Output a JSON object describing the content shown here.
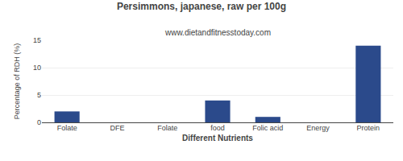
{
  "chart_data": {
    "type": "bar",
    "title": "Persimmons, japanese, raw per 100g",
    "subtitle": "www.dietandfitnesstoday.com",
    "xlabel": "Different Nutrients",
    "ylabel": "Percentage of RDH (%)",
    "categories": [
      "Folate",
      "DFE",
      "Folate",
      "food",
      "Folic acid",
      "Energy",
      "Protein"
    ],
    "values": [
      2,
      0,
      0,
      4,
      1,
      0,
      14
    ],
    "color": "#2b4a8b",
    "ylim": [
      0,
      15
    ],
    "yticks": [
      0,
      5,
      10,
      15
    ],
    "grid": true
  }
}
